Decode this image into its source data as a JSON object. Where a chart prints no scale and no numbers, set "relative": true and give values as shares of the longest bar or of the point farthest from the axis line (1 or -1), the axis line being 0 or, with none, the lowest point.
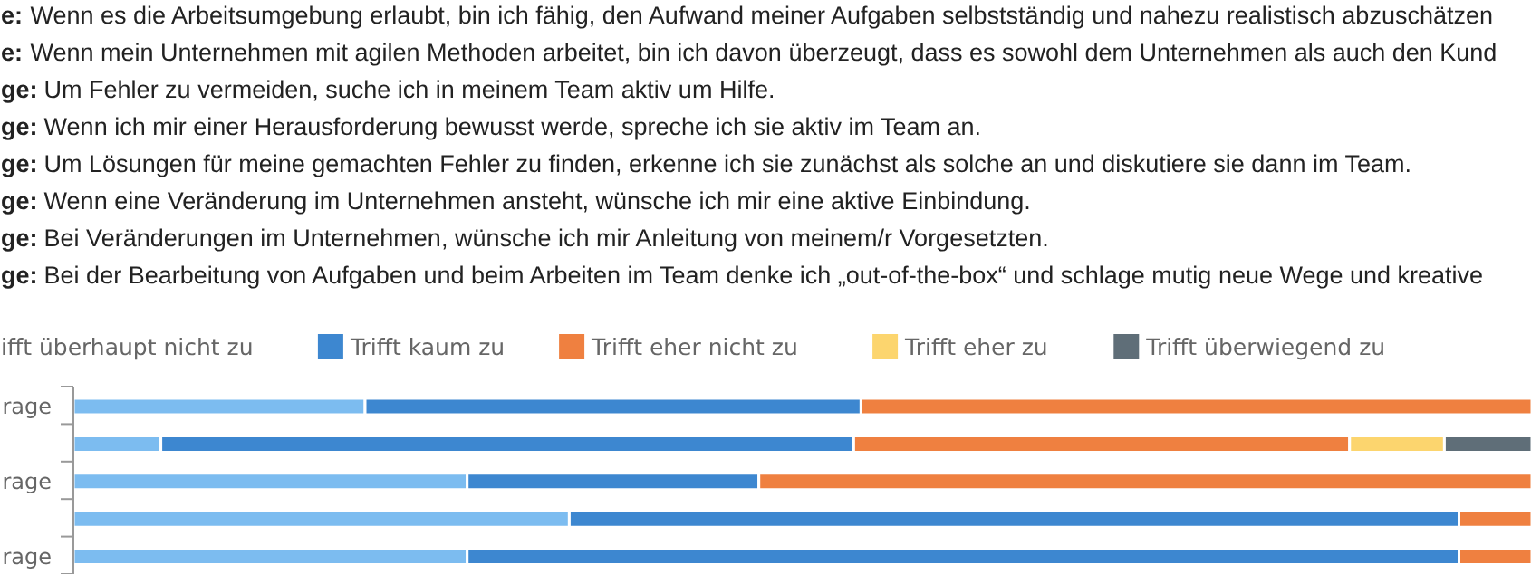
{
  "chart_data": {
    "type": "bar",
    "orientation": "horizontal",
    "stacked": true,
    "relative": true,
    "legend": "top",
    "annotations": [
      "e: Wenn es die Arbeitsumgebung erlaubt, bin ich fähig, den Aufwand meiner Aufgaben selbstständig und nahezu realistisch abzuschätzen",
      "e: Wenn mein Unternehmen mit agilen Methoden arbeitet, bin ich davon überzeugt, dass es sowohl dem Unternehmen als auch den Kund",
      "ge: Um Fehler zu vermeiden, suche ich in meinem Team aktiv um Hilfe.",
      "ge: Wenn ich mir einer Herausforderung bewusst werde, spreche ich sie aktiv im Team an.",
      "ge: Um Lösungen für meine gemachten Fehler zu finden, erkenne ich sie zunächst als solche an und diskutiere sie dann im Team.",
      "ge: Wenn eine Veränderung im Unternehmen ansteht, wünsche ich mir eine aktive Einbindung.",
      "ge: Bei Veränderungen im Unternehmen, wünsche ich mir Anleitung von meinem/r Vorgesetzten.",
      "ge: Bei der Bearbeitung von Aufgaben und beim Arbeiten im Team denke ich „out-of-the-box“ und schlage mutig neue Wege und kreative"
    ],
    "categories": [
      "rage",
      null,
      "rage",
      null,
      "rage"
    ],
    "series": [
      {
        "name": "ifft überhaupt nicht zu",
        "color": "#7cbcf0",
        "values": [
          0.2,
          0.06,
          0.27,
          0.34,
          0.27
        ]
      },
      {
        "name": "Trifft kaum zu",
        "color": "#3d87d0",
        "values": [
          0.34,
          0.475,
          0.2,
          0.61,
          0.68
        ]
      },
      {
        "name": "Trifft eher nicht zu",
        "color": "#ef8040",
        "values": [
          0.46,
          0.34,
          0.53,
          0.05,
          0.05
        ]
      },
      {
        "name": "Trifft eher zu",
        "color": "#fcd56e",
        "values": [
          null,
          0.065,
          null,
          null,
          null
        ]
      },
      {
        "name": "Trifft überwiegend zu",
        "color": "#5f6e78",
        "values": [
          null,
          0.06,
          null,
          null,
          null
        ]
      }
    ]
  }
}
